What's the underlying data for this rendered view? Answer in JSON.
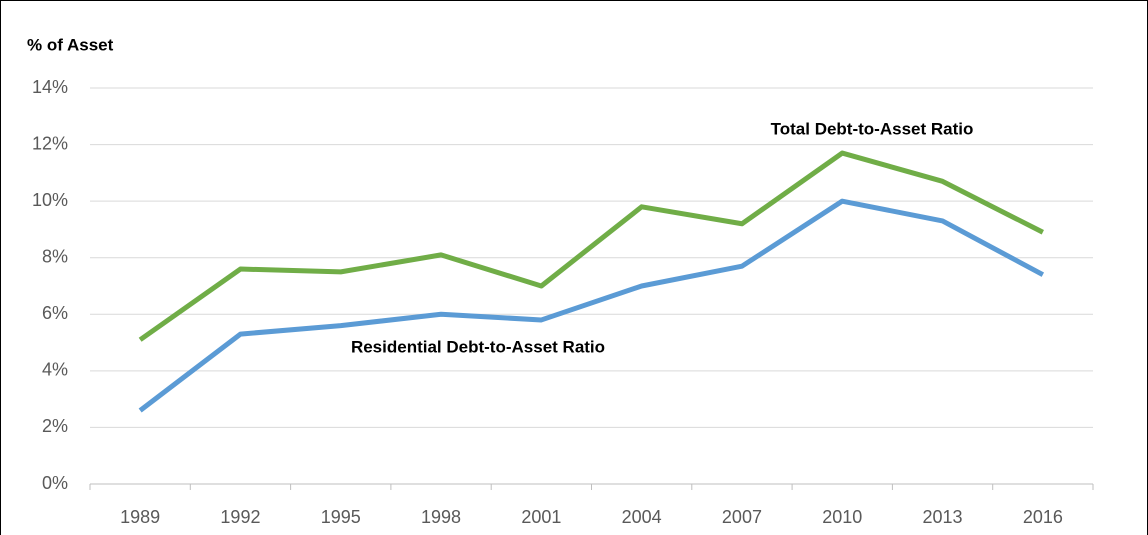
{
  "chart_data": {
    "type": "line",
    "y_label": "% of Asset",
    "categories": [
      "1989",
      "1992",
      "1995",
      "1998",
      "2001",
      "2004",
      "2007",
      "2010",
      "2013",
      "2016"
    ],
    "series": [
      {
        "name": "Total Debt-to-Asset Ratio",
        "color": "#70ad47",
        "values": [
          5.1,
          7.6,
          7.5,
          8.1,
          7.0,
          9.8,
          9.2,
          11.7,
          10.7,
          8.9
        ]
      },
      {
        "name": "Residential Debt-to-Asset Ratio",
        "color": "#5b9bd5",
        "values": [
          2.6,
          5.3,
          5.6,
          6.0,
          5.8,
          7.0,
          7.7,
          10.0,
          9.3,
          7.4
        ]
      }
    ],
    "ylim": [
      0,
      14
    ],
    "yticks": [
      {
        "value": 0,
        "label": "0%"
      },
      {
        "value": 2,
        "label": "2%"
      },
      {
        "value": 4,
        "label": "4%"
      },
      {
        "value": 6,
        "label": "6%"
      },
      {
        "value": 8,
        "label": "8%"
      },
      {
        "value": 10,
        "label": "10%"
      },
      {
        "value": 12,
        "label": "12%"
      },
      {
        "value": 14,
        "label": "14%"
      }
    ],
    "grid": true
  }
}
